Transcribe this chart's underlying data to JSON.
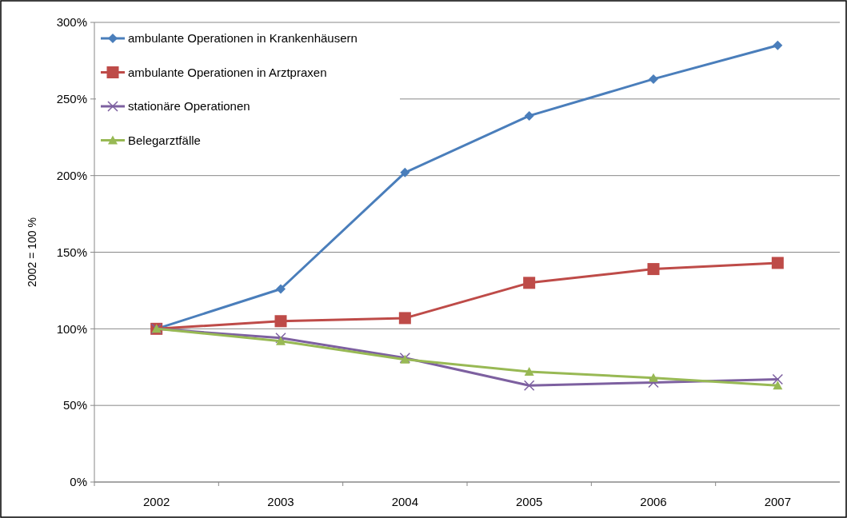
{
  "chart_data": {
    "type": "line",
    "ylabel": "2002 = 100 %",
    "categories": [
      "2002",
      "2003",
      "2004",
      "2005",
      "2006",
      "2007"
    ],
    "series": [
      {
        "name": "ambulante Operationen in Krankenhäusern",
        "color": "#4a7ebb",
        "marker": "diamond",
        "values": [
          100,
          126,
          202,
          239,
          263,
          285
        ]
      },
      {
        "name": "ambulante Operationen in Arztpraxen",
        "color": "#be4b48",
        "marker": "square",
        "values": [
          100,
          105,
          107,
          130,
          139,
          143
        ]
      },
      {
        "name": "stationäre Operationen",
        "color": "#7d60a0",
        "marker": "cross",
        "values": [
          100,
          94,
          81,
          63,
          65,
          67
        ]
      },
      {
        "name": "Belegarztfälle",
        "color": "#98b954",
        "marker": "triangle",
        "values": [
          100,
          92,
          80,
          72,
          68,
          63
        ]
      }
    ],
    "ylim": [
      0,
      300
    ],
    "yticks": [
      {
        "value": 0,
        "label": "0%"
      },
      {
        "value": 50,
        "label": "50%"
      },
      {
        "value": 100,
        "label": "100%"
      },
      {
        "value": 150,
        "label": "150%"
      },
      {
        "value": 200,
        "label": "200%"
      },
      {
        "value": 250,
        "label": "250%"
      },
      {
        "value": 300,
        "label": "300%"
      }
    ],
    "grid": "y",
    "legend": "top left",
    "line_style": "solid"
  }
}
